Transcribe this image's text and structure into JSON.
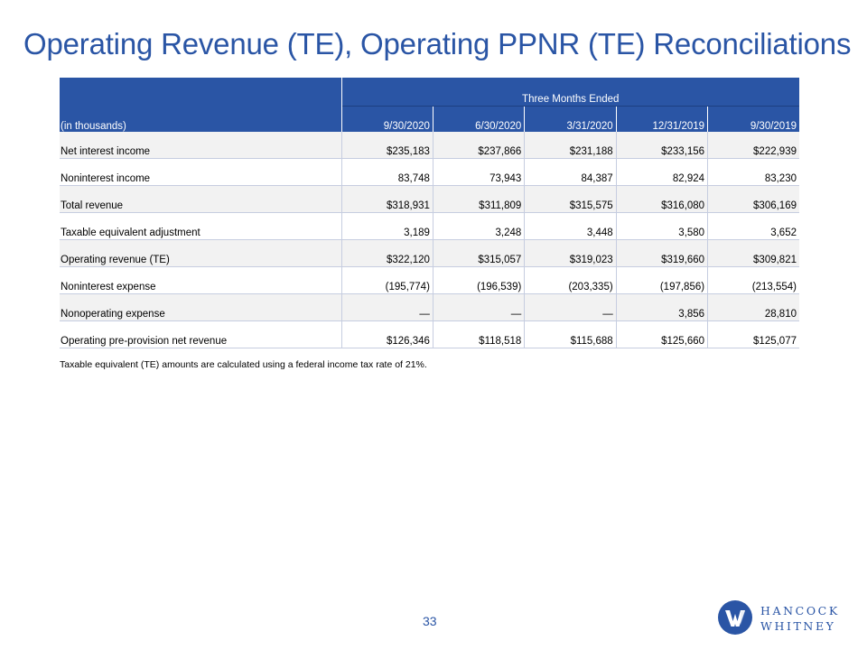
{
  "title": "Operating Revenue (TE), Operating PPNR (TE) Reconciliations",
  "table": {
    "group_header": "Three Months Ended",
    "label_header": "(in thousands)",
    "columns": [
      "9/30/2020",
      "6/30/2020",
      "3/31/2020",
      "12/31/2019",
      "9/30/2019"
    ],
    "rows": [
      {
        "label": "Net interest income",
        "values": [
          "$235,183",
          "$237,866",
          "$231,188",
          "$233,156",
          "$222,939"
        ],
        "shaded": true
      },
      {
        "label": "Noninterest income",
        "values": [
          "83,748",
          "73,943",
          "84,387",
          "82,924",
          "83,230"
        ],
        "shaded": false
      },
      {
        "label": "Total revenue",
        "values": [
          "$318,931",
          "$311,809",
          "$315,575",
          "$316,080",
          "$306,169"
        ],
        "shaded": true
      },
      {
        "label": "Taxable equivalent adjustment",
        "values": [
          "3,189",
          "3,248",
          "3,448",
          "3,580",
          "3,652"
        ],
        "shaded": false
      },
      {
        "label": "Operating revenue (TE)",
        "values": [
          "$322,120",
          "$315,057",
          "$319,023",
          "$319,660",
          "$309,821"
        ],
        "shaded": true
      },
      {
        "label": "Noninterest expense",
        "values": [
          "(195,774)",
          "(196,539)",
          "(203,335)",
          "(197,856)",
          "(213,554)"
        ],
        "shaded": false
      },
      {
        "label": "Nonoperating expense",
        "values": [
          "—",
          "—",
          "—",
          "3,856",
          "28,810"
        ],
        "shaded": true
      },
      {
        "label": "Operating pre-provision net revenue",
        "values": [
          "$126,346",
          "$118,518",
          "$115,688",
          "$125,660",
          "$125,077"
        ],
        "shaded": false
      }
    ]
  },
  "footnote": "Taxable equivalent (TE) amounts are calculated using a federal income tax rate of 21%.",
  "page_number": "33",
  "logo": {
    "line1": "HANCOCK",
    "line2": "WHITNEY",
    "mark_icon": "hancock-whitney-w-icon",
    "color": "#2a55a5"
  },
  "colors": {
    "accent": "#2a55a5",
    "row_shade": "#f2f2f2"
  }
}
